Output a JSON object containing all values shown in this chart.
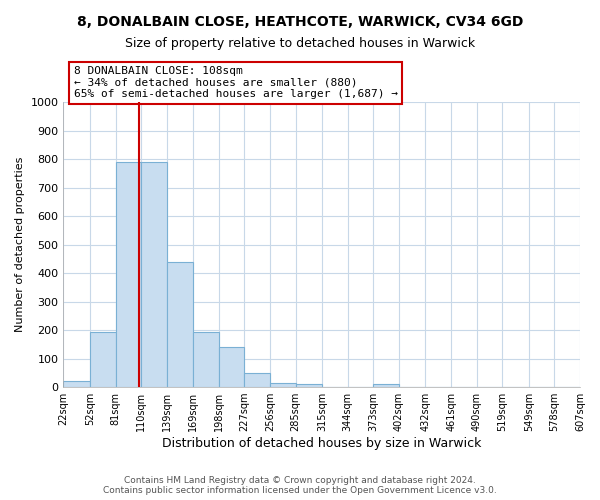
{
  "title1": "8, DONALBAIN CLOSE, HEATHCOTE, WARWICK, CV34 6GD",
  "title2": "Size of property relative to detached houses in Warwick",
  "xlabel": "Distribution of detached houses by size in Warwick",
  "ylabel": "Number of detached properties",
  "bar_values": [
    20,
    195,
    790,
    790,
    440,
    195,
    140,
    50,
    15,
    10,
    0,
    0,
    10,
    0,
    0,
    0,
    0,
    0,
    0,
    0
  ],
  "bin_edges": [
    22,
    52,
    81,
    110,
    139,
    169,
    198,
    227,
    256,
    285,
    315,
    344,
    373,
    402,
    432,
    461,
    490,
    519,
    549,
    578,
    607
  ],
  "bar_color": "#c8ddf0",
  "bar_edge_color": "#7ab0d4",
  "vline_x": 108,
  "vline_color": "#cc0000",
  "annotation_text_line1": "8 DONALBAIN CLOSE: 108sqm",
  "annotation_text_line2": "← 34% of detached houses are smaller (880)",
  "annotation_text_line3": "65% of semi-detached houses are larger (1,687) →",
  "ylim": [
    0,
    1000
  ],
  "yticks": [
    0,
    100,
    200,
    300,
    400,
    500,
    600,
    700,
    800,
    900,
    1000
  ],
  "tick_labels": [
    "22sqm",
    "52sqm",
    "81sqm",
    "110sqm",
    "139sqm",
    "169sqm",
    "198sqm",
    "227sqm",
    "256sqm",
    "285sqm",
    "315sqm",
    "344sqm",
    "373sqm",
    "402sqm",
    "432sqm",
    "461sqm",
    "490sqm",
    "519sqm",
    "549sqm",
    "578sqm",
    "607sqm"
  ],
  "footer1": "Contains HM Land Registry data © Crown copyright and database right 2024.",
  "footer2": "Contains public sector information licensed under the Open Government Licence v3.0.",
  "bg_color": "#ffffff",
  "grid_color": "#c8d8e8"
}
